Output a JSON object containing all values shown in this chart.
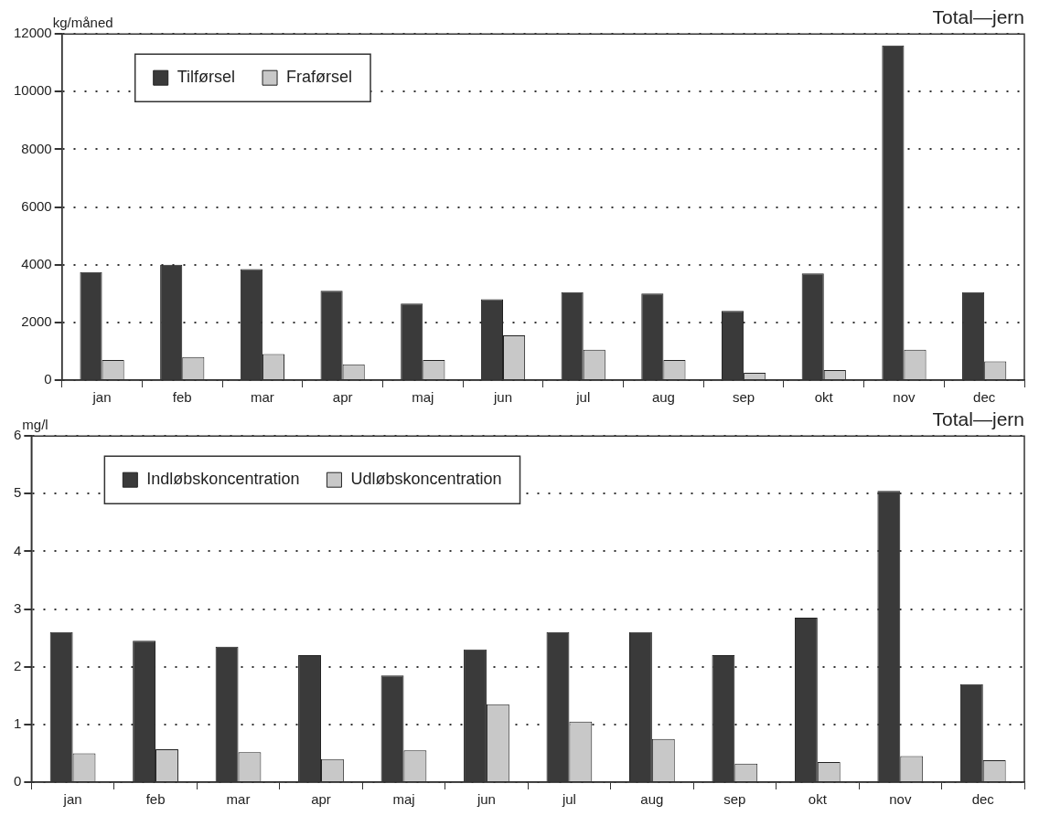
{
  "chart_data": [
    {
      "type": "bar",
      "title": "Total—jern",
      "ylabel": "kg/måned",
      "categories": [
        "jan",
        "feb",
        "mar",
        "apr",
        "maj",
        "jun",
        "jul",
        "aug",
        "sep",
        "okt",
        "nov",
        "dec"
      ],
      "series": [
        {
          "name": "Tilførsel",
          "color": "#3a3a3a",
          "values": [
            3750,
            4000,
            3850,
            3100,
            2650,
            2800,
            3050,
            3000,
            2400,
            3700,
            11600,
            3050
          ]
        },
        {
          "name": "Fraførsel",
          "color": "#c8c8c8",
          "values": [
            700,
            800,
            900,
            550,
            700,
            1550,
            1050,
            700,
            250,
            350,
            1050,
            650
          ]
        }
      ],
      "ylim": [
        0,
        12000
      ],
      "yticks": [
        0,
        2000,
        4000,
        6000,
        8000,
        10000,
        12000
      ],
      "grid": "y",
      "legend": "top left"
    },
    {
      "type": "bar",
      "title": "Total—jern",
      "ylabel": "mg/l",
      "categories": [
        "jan",
        "feb",
        "mar",
        "apr",
        "maj",
        "jun",
        "jul",
        "aug",
        "sep",
        "okt",
        "nov",
        "dec"
      ],
      "series": [
        {
          "name": "Indløbskoncentration",
          "color": "#3a3a3a",
          "values": [
            2.6,
            2.45,
            2.35,
            2.2,
            1.85,
            2.3,
            2.6,
            2.6,
            2.2,
            2.85,
            5.05,
            1.7
          ]
        },
        {
          "name": "Udløbskoncentration",
          "color": "#c8c8c8",
          "values": [
            0.5,
            0.57,
            0.52,
            0.4,
            0.55,
            1.35,
            1.05,
            0.75,
            0.32,
            0.35,
            0.45,
            0.38
          ]
        }
      ],
      "ylim": [
        0,
        6
      ],
      "yticks": [
        0,
        1,
        2,
        3,
        4,
        5,
        6
      ],
      "grid": "y",
      "legend": "top left"
    }
  ]
}
